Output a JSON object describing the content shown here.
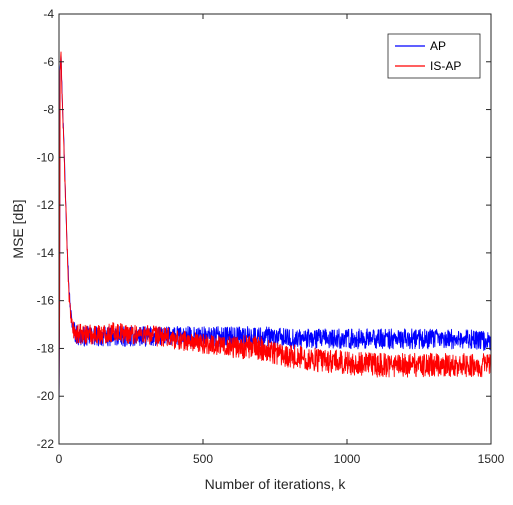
{
  "chart_data": {
    "type": "line",
    "title": "",
    "xlabel": "Number of iterations, k",
    "ylabel": "MSE [dB]",
    "xlim": [
      0,
      1500
    ],
    "ylim": [
      -22,
      -4
    ],
    "xticks": [
      0,
      500,
      1000,
      1500
    ],
    "yticks": [
      -22,
      -20,
      -18,
      -16,
      -14,
      -12,
      -10,
      -8,
      -6,
      -4
    ],
    "xtick_labels": [
      "0",
      "500",
      "1000",
      "1500"
    ],
    "ytick_labels": [
      "-22",
      "-20",
      "-18",
      "-16",
      "-14",
      "-12",
      "-10",
      "-8",
      "-6",
      "-4"
    ],
    "grid": false,
    "legend_position": "top-right",
    "series": [
      {
        "name": "AP",
        "color": "#0000ff",
        "x": [
          0,
          2,
          4,
          7,
          10,
          15,
          20,
          25,
          30,
          35,
          40,
          45,
          50,
          60,
          70,
          80,
          100,
          150,
          200,
          250,
          300,
          400,
          500,
          600,
          700,
          800,
          900,
          1000,
          1100,
          1200,
          1300,
          1400,
          1500
        ],
        "y": [
          -20.5,
          -16.5,
          -6.0,
          -5.7,
          -7.0,
          -8.7,
          -10.5,
          -12.4,
          -14.1,
          -15.6,
          -16.4,
          -16.9,
          -17.2,
          -17.4,
          -17.5,
          -17.5,
          -17.5,
          -17.5,
          -17.5,
          -17.5,
          -17.5,
          -17.5,
          -17.5,
          -17.5,
          -17.5,
          -17.6,
          -17.6,
          -17.6,
          -17.6,
          -17.6,
          -17.6,
          -17.6,
          -17.7
        ]
      },
      {
        "name": "IS-AP",
        "color": "#ff0000",
        "x": [
          0,
          2,
          4,
          7,
          10,
          15,
          20,
          25,
          30,
          35,
          40,
          45,
          50,
          60,
          70,
          80,
          100,
          150,
          200,
          250,
          300,
          400,
          500,
          600,
          700,
          800,
          900,
          1000,
          1100,
          1200,
          1300,
          1400,
          1500
        ],
        "y": [
          -20.3,
          -16.8,
          -6.3,
          -5.6,
          -7.2,
          -8.9,
          -10.8,
          -12.6,
          -14.4,
          -15.8,
          -16.6,
          -17.0,
          -17.3,
          -17.4,
          -17.4,
          -17.4,
          -17.4,
          -17.4,
          -17.3,
          -17.4,
          -17.4,
          -17.6,
          -17.8,
          -17.9,
          -18.0,
          -18.3,
          -18.5,
          -18.6,
          -18.7,
          -18.7,
          -18.7,
          -18.7,
          -18.7
        ]
      }
    ]
  }
}
